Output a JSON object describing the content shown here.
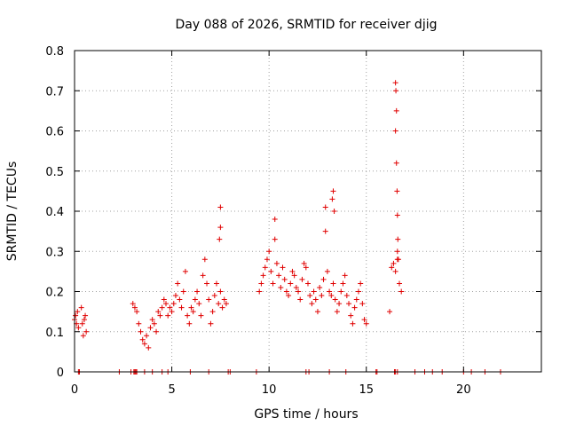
{
  "chart_data": {
    "type": "scatter",
    "title": "Day 088 of 2026, SRMTID for receiver djig",
    "xlabel": "GPS time / hours",
    "ylabel": "SRMTID / TECUs",
    "xlim": [
      0,
      24
    ],
    "ylim": [
      0,
      0.8
    ],
    "xticks": [
      0,
      5,
      10,
      15,
      20
    ],
    "xtick_labels": [
      "0",
      "5",
      "10",
      "15",
      "20"
    ],
    "yticks": [
      0,
      0.1,
      0.2,
      0.3,
      0.4,
      0.5,
      0.6,
      0.7,
      0.8
    ],
    "ytick_labels": [
      "0",
      "0.1",
      "0.2",
      "0.3",
      "0.4",
      "0.5",
      "0.6",
      "0.7",
      "0.8"
    ],
    "grid": true,
    "marker": "+",
    "color": "#e00000",
    "series": [
      {
        "name": "SRMTID",
        "x": [
          0.0,
          0.05,
          0.1,
          0.15,
          0.2,
          0.35,
          0.4,
          0.45,
          0.5,
          0.55,
          0.6,
          3.0,
          3.1,
          3.2,
          3.3,
          3.4,
          3.5,
          3.6,
          3.7,
          3.8,
          3.9,
          4.0,
          4.1,
          4.2,
          4.3,
          4.4,
          4.5,
          4.6,
          4.7,
          4.8,
          4.9,
          5.0,
          5.1,
          5.2,
          5.3,
          5.4,
          5.5,
          5.6,
          5.7,
          5.8,
          5.9,
          6.0,
          6.1,
          6.2,
          6.3,
          6.4,
          6.5,
          6.6,
          6.7,
          6.8,
          6.9,
          7.0,
          7.1,
          7.2,
          7.3,
          7.4,
          7.5,
          7.6,
          7.7,
          7.8,
          9.5,
          9.6,
          9.7,
          9.8,
          9.9,
          10.0,
          10.1,
          10.2,
          10.3,
          10.4,
          10.5,
          10.6,
          10.7,
          10.8,
          10.9,
          11.0,
          11.1,
          11.2,
          11.3,
          11.4,
          11.5,
          11.6,
          11.7,
          11.8,
          11.9,
          12.0,
          12.1,
          12.2,
          12.3,
          12.4,
          12.5,
          12.6,
          12.7,
          12.8,
          12.9,
          13.0,
          13.1,
          13.2,
          13.3,
          13.4,
          13.5,
          13.6,
          13.7,
          13.8,
          13.9,
          14.0,
          14.1,
          14.2,
          14.3,
          14.4,
          14.5,
          14.6,
          14.7,
          14.8,
          14.9,
          15.0,
          16.2,
          16.3,
          16.4,
          16.5,
          16.6,
          16.7,
          16.8,
          7.5,
          7.5,
          7.45,
          10.3,
          12.9,
          13.3,
          13.35,
          13.25,
          16.5,
          16.52,
          16.55,
          16.5,
          16.55,
          16.58,
          16.6,
          16.62,
          16.6,
          16.65,
          0.2,
          0.25,
          3.05,
          3.1,
          3.15,
          3.2,
          4.0,
          4.5,
          5.95,
          8.0,
          9.35,
          11.9,
          12.05,
          13.95,
          15.5,
          15.55,
          16.45,
          16.5,
          16.6,
          17.5,
          18.0,
          18.4,
          18.9,
          20.0,
          20.4,
          21.1,
          21.9,
          2.3,
          2.9,
          3.6,
          4.8,
          6.9,
          7.9,
          13.1
        ],
        "y": [
          0.13,
          0.14,
          0.12,
          0.15,
          0.11,
          0.16,
          0.12,
          0.09,
          0.13,
          0.14,
          0.1,
          0.17,
          0.16,
          0.15,
          0.12,
          0.1,
          0.08,
          0.07,
          0.09,
          0.06,
          0.11,
          0.13,
          0.12,
          0.1,
          0.15,
          0.14,
          0.16,
          0.18,
          0.17,
          0.14,
          0.16,
          0.15,
          0.17,
          0.19,
          0.22,
          0.18,
          0.16,
          0.2,
          0.25,
          0.14,
          0.12,
          0.16,
          0.15,
          0.18,
          0.2,
          0.17,
          0.14,
          0.24,
          0.28,
          0.22,
          0.18,
          0.12,
          0.15,
          0.19,
          0.22,
          0.17,
          0.2,
          0.16,
          0.18,
          0.17,
          0.2,
          0.22,
          0.24,
          0.26,
          0.28,
          0.3,
          0.25,
          0.22,
          0.33,
          0.27,
          0.24,
          0.21,
          0.26,
          0.23,
          0.2,
          0.19,
          0.22,
          0.25,
          0.24,
          0.21,
          0.2,
          0.18,
          0.23,
          0.27,
          0.26,
          0.22,
          0.19,
          0.17,
          0.2,
          0.18,
          0.15,
          0.21,
          0.19,
          0.23,
          0.35,
          0.25,
          0.2,
          0.19,
          0.22,
          0.18,
          0.15,
          0.17,
          0.2,
          0.22,
          0.24,
          0.19,
          0.17,
          0.14,
          0.12,
          0.16,
          0.18,
          0.2,
          0.22,
          0.17,
          0.13,
          0.12,
          0.15,
          0.26,
          0.27,
          0.25,
          0.28,
          0.22,
          0.2,
          0.41,
          0.36,
          0.33,
          0.38,
          0.41,
          0.45,
          0.4,
          0.43,
          0.72,
          0.7,
          0.65,
          0.6,
          0.52,
          0.45,
          0.39,
          0.33,
          0.3,
          0.28,
          0.0,
          0.0,
          0.0,
          0.0,
          0.0,
          0.0,
          0.0,
          0.0,
          0.0,
          0.0,
          0.0,
          0.0,
          0.0,
          0.0,
          0.0,
          0.0,
          0.0,
          0.0,
          0.0,
          0.0,
          0.0,
          0.0,
          0.0,
          0.0,
          0.0,
          0.0,
          0.0,
          0.0,
          0.0,
          0.0,
          0.0,
          0.0,
          0.0,
          0.0
        ]
      }
    ]
  }
}
